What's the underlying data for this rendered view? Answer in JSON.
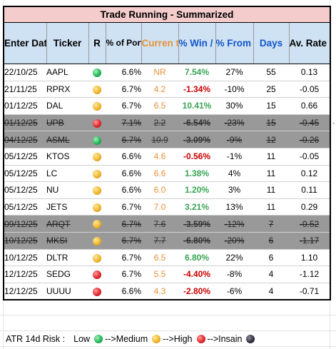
{
  "title": "Trade Running - Summarized",
  "headers": {
    "enter_date": "Enter Date",
    "ticker": "Ticker",
    "r": "R",
    "pct_portfolio": "% of Portfolio",
    "current_rr": "Curren t R/R",
    "pct_win_loss": "% Win / Loss",
    "pct_from_target": "% From Target",
    "days": "Days",
    "av_rate": "Av. Rate %/d"
  },
  "risk_colors": {
    "green": "#22b75a",
    "yellow": "#f1b62c",
    "red": "#e0292f",
    "black": "#2c2c3c"
  },
  "rows": [
    {
      "date": "22/10/25",
      "ticker": "AAPL",
      "risk": "green",
      "pct": "6.6%",
      "rr": "NR",
      "win": "7.54%",
      "win_sign": "pos",
      "target": "27%",
      "days": "55",
      "rate": "0.13",
      "closed": false
    },
    {
      "date": "21/11/25",
      "ticker": "RPRX",
      "risk": "yellow",
      "pct": "6.7%",
      "rr": "4.2",
      "win": "-1.34%",
      "win_sign": "neg",
      "target": "-10%",
      "days": "25",
      "rate": "-0.05",
      "closed": false
    },
    {
      "date": "01/12/25",
      "ticker": "DAL",
      "risk": "yellow",
      "pct": "6.7%",
      "rr": "6.5",
      "win": "10.41%",
      "win_sign": "pos",
      "target": "30%",
      "days": "15",
      "rate": "0.66",
      "closed": false
    },
    {
      "date": "01/12/25",
      "ticker": "UPB",
      "risk": "red",
      "pct": "7.1%",
      "rr": "2.2",
      "win": "-6.54%",
      "win_sign": "neg",
      "target": "-23%",
      "days": "15",
      "rate": "-0.45",
      "closed": true
    },
    {
      "date": "04/12/25",
      "ticker": "ASML",
      "risk": "green",
      "pct": "6.7%",
      "rr": "10.9",
      "win": "-3.09%",
      "win_sign": "neg",
      "target": "-9%",
      "days": "12",
      "rate": "-0.26",
      "closed": true
    },
    {
      "date": "05/12/25",
      "ticker": "KTOS",
      "risk": "yellow",
      "pct": "6.6%",
      "rr": "4.6",
      "win": "-0.56%",
      "win_sign": "neg",
      "target": "-1%",
      "days": "11",
      "rate": "-0.05",
      "closed": false
    },
    {
      "date": "05/12/25",
      "ticker": "LC",
      "risk": "yellow",
      "pct": "6.6%",
      "rr": "6.6",
      "win": "1.38%",
      "win_sign": "pos",
      "target": "4%",
      "days": "11",
      "rate": "0.12",
      "closed": false
    },
    {
      "date": "05/12/25",
      "ticker": "NU",
      "risk": "yellow",
      "pct": "6.6%",
      "rr": "6.0",
      "win": "1.20%",
      "win_sign": "pos",
      "target": "3%",
      "days": "11",
      "rate": "0.11",
      "closed": false
    },
    {
      "date": "05/12/25",
      "ticker": "JETS",
      "risk": "yellow",
      "pct": "6.7%",
      "rr": "7.0",
      "win": "3.21%",
      "win_sign": "pos",
      "target": "13%",
      "days": "11",
      "rate": "0.29",
      "closed": false
    },
    {
      "date": "09/12/25",
      "ticker": "ARQT",
      "risk": "yellow",
      "pct": "6.7%",
      "rr": "7.6",
      "win": "-3.59%",
      "win_sign": "neg",
      "target": "-12%",
      "days": "7",
      "rate": "-0.52",
      "closed": true
    },
    {
      "date": "10/12/25",
      "ticker": "MKSI",
      "risk": "yellow",
      "pct": "6.7%",
      "rr": "7.7",
      "win": "-6.80%",
      "win_sign": "neg",
      "target": "-20%",
      "days": "6",
      "rate": "-1.17",
      "closed": true
    },
    {
      "date": "10/12/25",
      "ticker": "DLTR",
      "risk": "yellow",
      "pct": "6.7%",
      "rr": "6.5",
      "win": "6.80%",
      "win_sign": "pos",
      "target": "22%",
      "days": "6",
      "rate": "1.10",
      "closed": false
    },
    {
      "date": "12/12/25",
      "ticker": "SEDG",
      "risk": "red",
      "pct": "6.7%",
      "rr": "5.5",
      "win": "-4.40%",
      "win_sign": "neg",
      "target": "-8%",
      "days": "4",
      "rate": "-1.12",
      "closed": false
    },
    {
      "date": "12/12/25",
      "ticker": "UUUU",
      "risk": "red",
      "pct": "6.6%",
      "rr": "4.3",
      "win": "-2.80%",
      "win_sign": "neg",
      "target": "-6%",
      "days": "4",
      "rate": "-0.71",
      "closed": false
    }
  ],
  "legend": {
    "label": "ATR 14d Risk :",
    "items": [
      {
        "text": "Low",
        "risk": "green"
      },
      {
        "text": "-->Medium",
        "risk": "yellow"
      },
      {
        "text": "-->High",
        "risk": "red"
      },
      {
        "text": "-->Insain",
        "risk": "black"
      }
    ]
  },
  "side_mark": "`"
}
